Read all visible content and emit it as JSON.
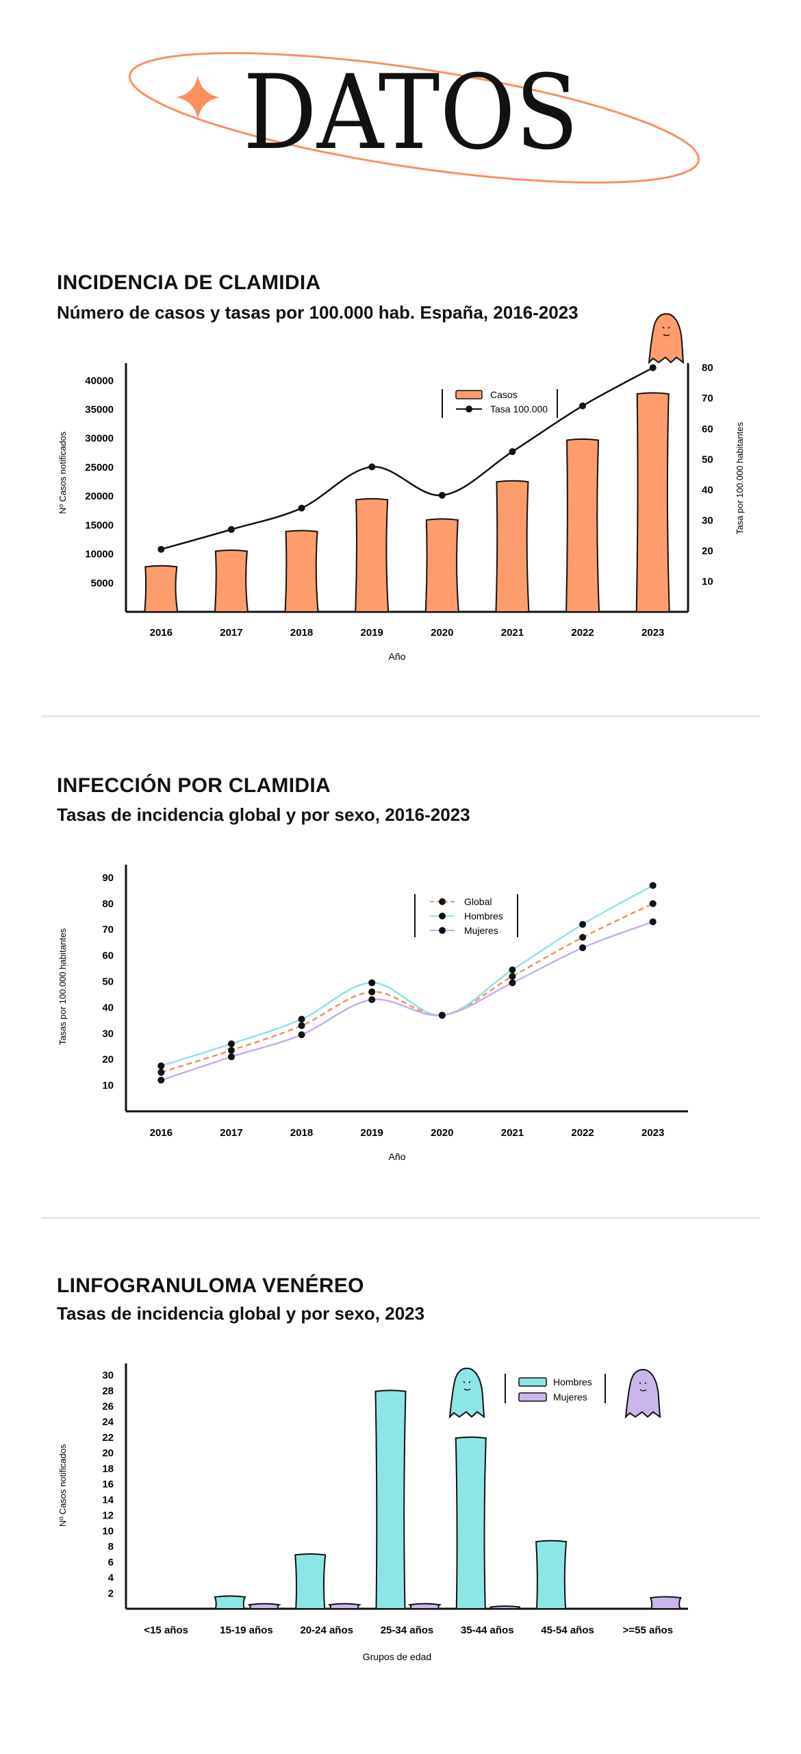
{
  "header": {
    "title": "DATOS",
    "accent_color": "#fa8f5f"
  },
  "sections": [
    {
      "title": "INCIDENCIA DE CLAMIDIA",
      "subtitle": "Número de casos y tasas por 100.000 hab. España, 2016-2023"
    },
    {
      "title": "INFECCIÓN POR CLAMIDIA",
      "subtitle": "Tasas de incidencia global y por sexo, 2016-2023"
    },
    {
      "title": "LINFOGRANULOMA VENÉREO",
      "subtitle": "Tasas de incidencia global y por sexo, 2023"
    }
  ],
  "chart_data": [
    {
      "type": "bar",
      "title": "Número de casos y tasas por 100.000 hab. España, 2016-2023",
      "categories": [
        "2016",
        "2017",
        "2018",
        "2019",
        "2020",
        "2021",
        "2022",
        "2023"
      ],
      "xlabel": "Año",
      "ylabel": "Nº Casos notificados",
      "y2label": "Tasa por 100.000 habitantes",
      "ylim": [
        0,
        43000
      ],
      "y_ticks": [
        5000,
        10000,
        15000,
        20000,
        25000,
        30000,
        35000,
        40000
      ],
      "y2lim": [
        0,
        81.5
      ],
      "y2_ticks": [
        10,
        20,
        30,
        40,
        50,
        60,
        70,
        80
      ],
      "series": [
        {
          "name": "Casos",
          "kind": "bar",
          "color": "#fd9c6c",
          "values": [
            7900,
            10600,
            14000,
            19500,
            16000,
            22600,
            29800,
            37800
          ]
        },
        {
          "name": "Tasa 100.000",
          "kind": "line",
          "color": "#111111",
          "values": [
            20.5,
            27,
            34,
            47.5,
            38.2,
            52.5,
            67.5,
            80
          ]
        }
      ],
      "legend": [
        "Casos",
        "Tasa 100.000"
      ],
      "legend_position": "top-center"
    },
    {
      "type": "line",
      "title": "Tasas de incidencia global y por sexo, 2016-2023",
      "categories": [
        "2016",
        "2017",
        "2018",
        "2019",
        "2020",
        "2021",
        "2022",
        "2023"
      ],
      "xlabel": "Año",
      "ylabel": "Tasas por 100.000 habitantes",
      "ylim": [
        0,
        95
      ],
      "y_ticks": [
        10,
        20,
        30,
        40,
        50,
        60,
        70,
        80,
        90
      ],
      "series": [
        {
          "name": "Global",
          "color": "#f0935a",
          "dashed": true,
          "values": [
            15,
            23.5,
            33,
            46,
            37,
            52,
            67,
            80
          ]
        },
        {
          "name": "Hombres",
          "color": "#8ee3e8",
          "dashed": false,
          "values": [
            17.5,
            26,
            35.5,
            49.5,
            37,
            54.5,
            72,
            87
          ]
        },
        {
          "name": "Mujeres",
          "color": "#c9aee8",
          "dashed": false,
          "values": [
            12,
            21,
            29.5,
            43,
            37,
            49.5,
            63,
            73
          ]
        }
      ],
      "legend": [
        "Global",
        "Hombres",
        "Mujeres"
      ],
      "legend_position": "top-center"
    },
    {
      "type": "bar",
      "title": "Tasas de incidencia global y por sexo, 2023",
      "categories": [
        "<15 años",
        "15-19 años",
        "20-24 años",
        "25-34 años",
        "35-44 años",
        "45-54 años",
        ">=55 años"
      ],
      "xlabel": "Grupos de edad",
      "ylabel": "Nº Casos notificados",
      "ylim": [
        0,
        31.5
      ],
      "y_ticks": [
        2,
        4,
        6,
        8,
        10,
        12,
        14,
        16,
        18,
        20,
        22,
        24,
        26,
        28,
        30
      ],
      "series": [
        {
          "name": "Hombres",
          "color": "#8ee5e6",
          "values": [
            0,
            1.6,
            7,
            28,
            22,
            8.7,
            0
          ]
        },
        {
          "name": "Mujeres",
          "color": "#cbb6ec",
          "values": [
            0,
            0.6,
            0.6,
            0.6,
            0.3,
            0,
            1.5
          ]
        }
      ],
      "legend": [
        "Hombres",
        "Mujeres"
      ],
      "legend_position": "top-right"
    }
  ]
}
